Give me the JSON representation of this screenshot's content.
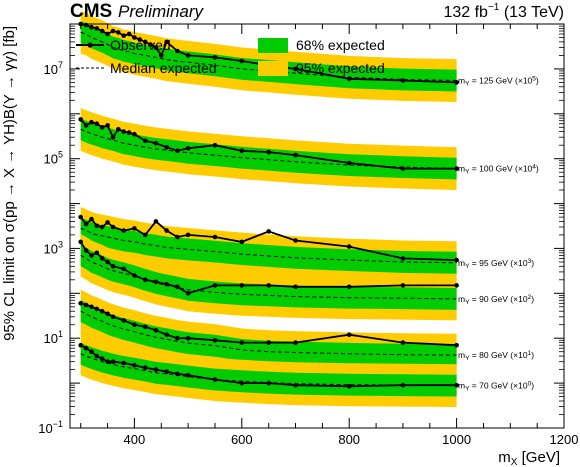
{
  "header": {
    "experiment": "CMS",
    "status": "Preliminary",
    "lumi_value": "132 fb",
    "lumi_exponent": "−1",
    "energy": "(13 TeV)"
  },
  "colors": {
    "band68": "#00cc00",
    "band95": "#ffcc00",
    "observed": "#000000",
    "expected": "#000000"
  },
  "chart_data": {
    "type": "line",
    "log_y": true,
    "xlim": [
      280,
      1200
    ],
    "ylim": [
      0.1,
      100000000
    ],
    "grid": false,
    "legend_position": "top-left",
    "xlabel": {
      "main": "m",
      "sub": "X",
      "rest": " [GeV]"
    },
    "ylabel": "95% CL limit on σ(pp → X → YH)B(Y → γγ) [fb]",
    "x_ticks": [
      400,
      600,
      800,
      1000,
      1200
    ],
    "y_ticks": [
      {
        "value": 0.1,
        "base": "10",
        "exp": "−1"
      },
      {
        "value": 10,
        "base": "10",
        "exp": "1"
      },
      {
        "value": 1000,
        "base": "10",
        "exp": "3"
      },
      {
        "value": 100000,
        "base": "10",
        "exp": "5"
      },
      {
        "value": 10000000,
        "base": "10",
        "exp": "7"
      }
    ],
    "legend": [
      {
        "label": "Observed",
        "style": "observed"
      },
      {
        "label": "Median expected",
        "style": "expected"
      },
      {
        "label": "68% expected",
        "style": "band68"
      },
      {
        "label": "95% expected",
        "style": "band95"
      }
    ],
    "series": [
      {
        "mass_label": {
          "pre": "m",
          "sub": "Y",
          "post": " = 125 GeV (×10",
          "sup": "5",
          "end": ")"
        },
        "x": [
          300,
          310,
          320,
          330,
          340,
          350,
          360,
          370,
          380,
          390,
          400,
          410,
          420,
          430,
          440,
          450,
          460,
          480,
          500,
          550,
          600,
          650,
          700,
          800,
          900,
          1000
        ],
        "observed": [
          100000000,
          95000000,
          85000000,
          80000000,
          70000000,
          60000000,
          70000000,
          65000000,
          55000000,
          60000000,
          50000000,
          45000000,
          40000000,
          35000000,
          30000000,
          20000000,
          40000000,
          25000000,
          20000000,
          18000000,
          15000000,
          12000000,
          10000000,
          6000000,
          5500000,
          5000000
        ],
        "expected": [
          65000000,
          60000000,
          50000000,
          45000000,
          40000000,
          35000000,
          30000000,
          28000000,
          25000000,
          24000000,
          22000000,
          21000000,
          20000000,
          19000000,
          18000000,
          17000000,
          16000000,
          15000000,
          14000000,
          12000000,
          10000000,
          9000000,
          8000000,
          6500000,
          5800000,
          5500000
        ]
      },
      {
        "mass_label": {
          "pre": "m",
          "sub": "Y",
          "post": " = 100 GeV (×10",
          "sup": "4",
          "end": ")"
        },
        "x": [
          300,
          310,
          320,
          330,
          340,
          350,
          360,
          370,
          380,
          390,
          400,
          420,
          440,
          460,
          480,
          500,
          550,
          600,
          650,
          700,
          800,
          900,
          1000
        ],
        "observed": [
          750000,
          550000,
          650000,
          600000,
          500000,
          550000,
          300000,
          450000,
          400000,
          380000,
          350000,
          250000,
          220000,
          180000,
          150000,
          170000,
          200000,
          150000,
          140000,
          120000,
          80000,
          60000,
          60000
        ],
        "expected": [
          450000,
          400000,
          360000,
          330000,
          300000,
          280000,
          260000,
          240000,
          220000,
          210000,
          200000,
          180000,
          165000,
          155000,
          145000,
          135000,
          120000,
          105000,
          95000,
          85000,
          72000,
          65000,
          60000
        ]
      },
      {
        "mass_label": {
          "pre": "m",
          "sub": "Y",
          "post": " = 95 GeV (×10",
          "sup": "3",
          "end": ")"
        },
        "x": [
          300,
          310,
          320,
          330,
          340,
          350,
          360,
          380,
          400,
          420,
          440,
          460,
          480,
          500,
          550,
          600,
          650,
          700,
          800,
          900,
          1000
        ],
        "observed": [
          5000,
          3500,
          4500,
          3200,
          3000,
          3800,
          3000,
          2500,
          2800,
          2000,
          4000,
          2500,
          1800,
          2000,
          1800,
          1400,
          2400,
          1500,
          1100,
          600,
          550
        ],
        "expected": [
          2800,
          2500,
          2200,
          2000,
          1900,
          1800,
          1700,
          1500,
          1400,
          1250,
          1150,
          1050,
          1000,
          950,
          850,
          750,
          680,
          620,
          550,
          500,
          480
        ]
      },
      {
        "mass_label": {
          "pre": "m",
          "sub": "Y",
          "post": " = 90 GeV (×10",
          "sup": "2",
          "end": ")"
        },
        "x": [
          300,
          310,
          320,
          330,
          340,
          350,
          360,
          380,
          400,
          420,
          440,
          460,
          480,
          500,
          550,
          600,
          650,
          700,
          800,
          900,
          1000
        ],
        "observed": [
          1400,
          900,
          700,
          800,
          600,
          500,
          400,
          350,
          250,
          200,
          180,
          160,
          140,
          100,
          150,
          150,
          150,
          140,
          140,
          150,
          150
        ],
        "expected": [
          700,
          600,
          500,
          450,
          400,
          350,
          320,
          280,
          240,
          200,
          170,
          150,
          135,
          120,
          105,
          95,
          90,
          85,
          80,
          78,
          75
        ]
      },
      {
        "mass_label": {
          "pre": "m",
          "sub": "Y",
          "post": " = 80 GeV (×10",
          "sup": "1",
          "end": ")"
        },
        "x": [
          300,
          310,
          320,
          330,
          340,
          350,
          360,
          380,
          400,
          420,
          440,
          460,
          480,
          500,
          550,
          600,
          650,
          700,
          800,
          900,
          1000
        ],
        "observed": [
          60,
          55,
          50,
          45,
          40,
          35,
          30,
          25,
          20,
          18,
          15,
          12,
          10,
          10,
          9,
          8,
          8,
          8,
          12,
          8,
          7
        ],
        "expected": [
          40,
          35,
          30,
          27,
          24,
          21,
          19,
          16,
          14,
          12,
          10.5,
          9.5,
          8.5,
          7.8,
          6.8,
          5.5,
          5,
          4.8,
          4.5,
          4.3,
          4.2
        ]
      },
      {
        "mass_label": {
          "pre": "m",
          "sub": "Y",
          "post": " = 70 GeV (×10",
          "sup": "0",
          "end": ")"
        },
        "x": [
          300,
          310,
          320,
          330,
          340,
          350,
          360,
          380,
          400,
          420,
          440,
          460,
          480,
          500,
          550,
          600,
          650,
          700,
          800,
          900,
          1000
        ],
        "observed": [
          7,
          6,
          5,
          4,
          3.5,
          3,
          3,
          2.8,
          2.5,
          2.2,
          2,
          1.8,
          1.6,
          1.5,
          1.2,
          1,
          1,
          0.9,
          0.85,
          0.9,
          0.9
        ],
        "expected": [
          4.5,
          4,
          3.6,
          3.3,
          3,
          2.8,
          2.6,
          2.3,
          2.1,
          1.9,
          1.7,
          1.6,
          1.5,
          1.4,
          1.2,
          1.1,
          1.02,
          0.97,
          0.92,
          0.9,
          0.88
        ]
      }
    ]
  }
}
